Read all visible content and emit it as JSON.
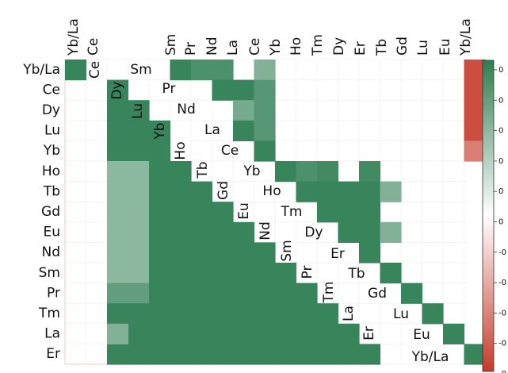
{
  "chart_data": {
    "type": "heatmap",
    "title": "",
    "xlabel": "",
    "ylabel": "",
    "colormap": {
      "positive": "#2e7d52",
      "negative": "#c63a2b",
      "zero": "#ffffff"
    },
    "color_range": [
      -1,
      1
    ],
    "colorbar_ticks_visible": [
      "0",
      "0",
      "0",
      "0",
      "0",
      "0",
      "-0",
      "-0",
      "-0",
      "-0",
      "-0"
    ],
    "top_tick_labels": [
      "Yb/La",
      "Ce",
      "Sm",
      "Pr",
      "Nd",
      "La",
      "Ce",
      "Yb",
      "Ho",
      "Tm",
      "Dy",
      "Er",
      "Tb",
      "Gd",
      "Lu",
      "Eu",
      "Yb/La"
    ],
    "left_tick_labels": [
      "Yb/La",
      "Ce",
      "Dy",
      "Lu",
      "Yb",
      "Ho",
      "Tb",
      "Gd",
      "Eu",
      "Nd",
      "Sm",
      "Pr",
      "Tm",
      "La",
      "Er"
    ],
    "diagonal_labels": [
      "Ce",
      "Sm",
      "Dy",
      "Pr",
      "Lu",
      "Nd",
      "Yb",
      "La",
      "Ho",
      "Ce",
      "Tb",
      "Yb",
      "Gd",
      "Ho",
      "Eu",
      "Tm",
      "Nd",
      "Dy",
      "Sm",
      "Er",
      "Pr",
      "Tb",
      "Tm",
      "Gd",
      "La",
      "Lu",
      "Er",
      "Eu",
      "Yb/La"
    ],
    "cells": [
      {
        "row": 0,
        "col": 0,
        "value": 0.95
      },
      {
        "row": 0,
        "col": 5,
        "value": 0.95
      },
      {
        "row": 0,
        "col": 6,
        "value": 0.85
      },
      {
        "row": 0,
        "col": 7,
        "value": 0.85
      },
      {
        "row": 0,
        "col": 9,
        "value": 0.6
      },
      {
        "row": 0,
        "col": 19,
        "value": -0.9
      },
      {
        "row": 1,
        "col": 2,
        "value": 0.95
      },
      {
        "row": 1,
        "col": 7,
        "value": 0.95
      },
      {
        "row": 1,
        "col": 8,
        "value": 0.95
      },
      {
        "row": 1,
        "col": 9,
        "value": 0.8
      },
      {
        "row": 1,
        "col": 19,
        "value": -0.9
      },
      {
        "row": 2,
        "col": 3,
        "value": 0.95
      },
      {
        "row": 2,
        "col": 8,
        "value": 0.65
      },
      {
        "row": 2,
        "col": 9,
        "value": 0.8
      },
      {
        "row": 2,
        "col": 19,
        "value": -0.9
      },
      {
        "row": 3,
        "col": 3,
        "value": 0.95
      },
      {
        "row": 3,
        "col": 4,
        "value": 0.95
      },
      {
        "row": 3,
        "col": 8,
        "value": 0.95
      },
      {
        "row": 3,
        "col": 9,
        "value": 0.8
      },
      {
        "row": 3,
        "col": 19,
        "value": -0.9
      },
      {
        "row": 4,
        "col": 19,
        "value": -0.65
      },
      {
        "row": 4,
        "col": 9,
        "value": 0.95
      },
      {
        "row": 5,
        "col": 10,
        "value": 0.95
      },
      {
        "row": 5,
        "col": 11,
        "value": 0.85
      },
      {
        "row": 5,
        "col": 12,
        "value": 0.9
      },
      {
        "row": 5,
        "col": 14,
        "value": 0.9
      },
      {
        "row": 6,
        "col": 11,
        "value": 0.95
      },
      {
        "row": 6,
        "col": 12,
        "value": 0.95
      },
      {
        "row": 6,
        "col": 13,
        "value": 0.95
      },
      {
        "row": 6,
        "col": 14,
        "value": 0.95
      },
      {
        "row": 6,
        "col": 15,
        "value": 0.6
      },
      {
        "row": 7,
        "col": 12,
        "value": 0.95
      },
      {
        "row": 7,
        "col": 13,
        "value": 0.95
      },
      {
        "row": 7,
        "col": 14,
        "value": 0.95
      },
      {
        "row": 8,
        "col": 13,
        "value": 0.95
      },
      {
        "row": 8,
        "col": 14,
        "value": 0.95
      },
      {
        "row": 8,
        "col": 15,
        "value": 0.6
      },
      {
        "row": 9,
        "col": 14,
        "value": 0.95
      },
      {
        "row": 10,
        "col": 15,
        "value": 0.95
      },
      {
        "row": 11,
        "col": 16,
        "value": 0.95
      },
      {
        "row": 12,
        "col": 17,
        "value": 0.95
      },
      {
        "row": 13,
        "col": 18,
        "value": 0.95
      },
      {
        "row": 13,
        "col": 2,
        "value": 0.6
      },
      {
        "row": 14,
        "col": 19,
        "value": 0.95
      }
    ],
    "lower_block": [
      {
        "rows": [
          2,
          3
        ],
        "from_col": 2,
        "value": 0.95
      },
      {
        "rows": [
          4
        ],
        "from_col": 2,
        "value": 0.95
      },
      {
        "rows": [
          5,
          6,
          7,
          8,
          9,
          10
        ],
        "col_pale": [
          2,
          3
        ],
        "value_pale": 0.55,
        "value": 0.95
      },
      {
        "rows": [
          11
        ],
        "col_pale": [
          2,
          3
        ],
        "value_pale": 0.75,
        "value": 0.95
      },
      {
        "rows": [
          12,
          13,
          14
        ],
        "value": 0.95
      }
    ]
  }
}
